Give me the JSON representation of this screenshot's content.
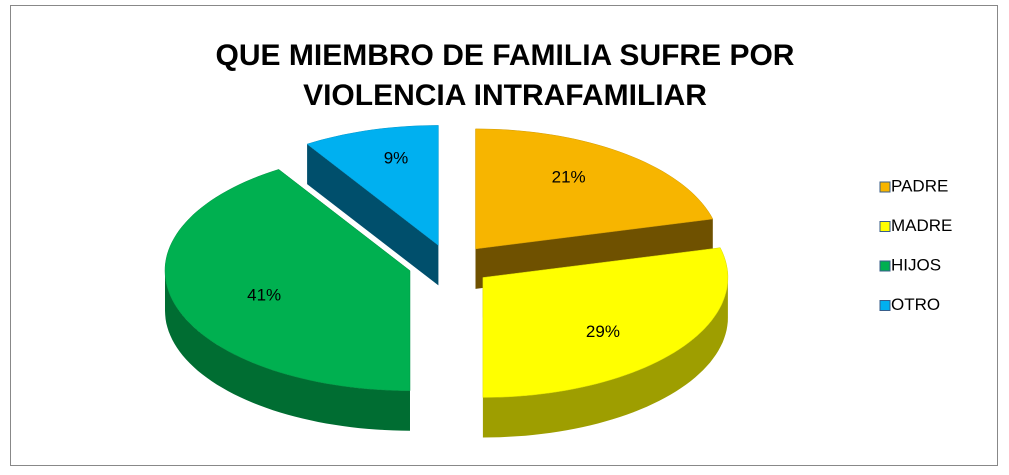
{
  "chart_data": {
    "type": "pie3d",
    "title": "QUE MIEMBRO DE FAMILIA SUFRE POR VIOLENCIA INTRAFAMILIAR",
    "categories": [
      "PADRE",
      "MADRE",
      "HIJOS",
      "OTRO"
    ],
    "values": [
      21,
      29,
      41,
      9
    ],
    "value_labels": [
      "21%",
      "29%",
      "41%",
      "9%"
    ],
    "colors": [
      "#f7b500",
      "#ffff00",
      "#00b050",
      "#00b0f0"
    ],
    "legend": "right"
  }
}
